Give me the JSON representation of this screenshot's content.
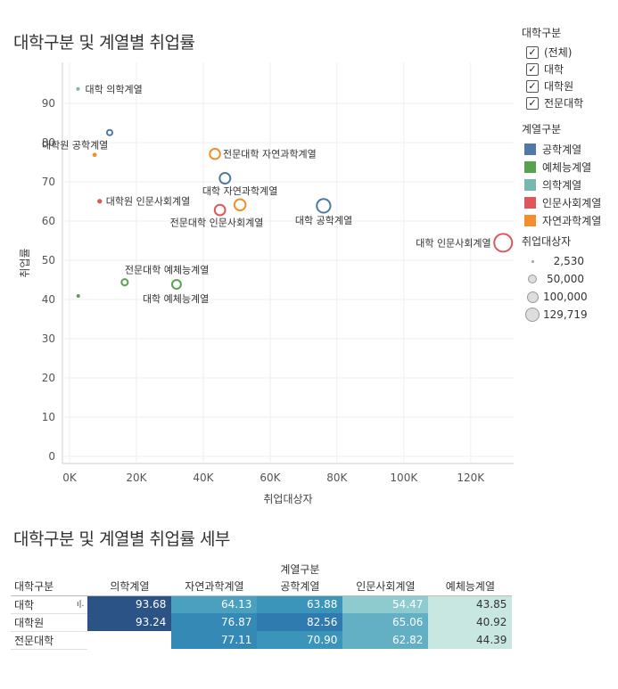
{
  "chart_title": "대학구분 및 계열별 취업률",
  "table_title": "대학구분 및 계열별 취업률 세부",
  "legend": {
    "type_title": "대학구분",
    "type_items": [
      "(전체)",
      "대학",
      "대학원",
      "전문대학"
    ],
    "field_title": "계열구분",
    "field_items": [
      {
        "name": "공학계열",
        "color": "#4e79a7"
      },
      {
        "name": "예체능계열",
        "color": "#59a14f"
      },
      {
        "name": "의학계열",
        "color": "#76b7b2"
      },
      {
        "name": "인문사회계열",
        "color": "#e15759"
      },
      {
        "name": "자연과학계열",
        "color": "#f28e2b"
      }
    ],
    "size_title": "취업대상자",
    "size_items": [
      "2,530",
      "50,000",
      "100,000",
      "129,719"
    ]
  },
  "chart_data": {
    "type": "scatter",
    "xlabel": "취업대상자",
    "ylabel": "취업률",
    "xlim": [
      0,
      135000
    ],
    "ylim": [
      0,
      100
    ],
    "x_ticks": [
      "0K",
      "20K",
      "40K",
      "60K",
      "80K",
      "100K",
      "120K"
    ],
    "y_ticks": [
      "0",
      "10",
      "20",
      "30",
      "40",
      "50",
      "60",
      "70",
      "80",
      "90"
    ],
    "grid": true,
    "points": [
      {
        "label": "대학 의학계열",
        "field": "의학계열",
        "x": 2530,
        "y": 93.68,
        "filled": true
      },
      {
        "label": "대학원 공학계열",
        "field": "공학계열",
        "x": 12000,
        "y": 82.56,
        "filled": false
      },
      {
        "label": "",
        "field": "자연과학계열",
        "x": 7500,
        "y": 76.87,
        "filled": true
      },
      {
        "label": "전문대학 자연과학계열",
        "field": "자연과학계열",
        "x": 43500,
        "y": 77.11,
        "filled": false
      },
      {
        "label": "대학 자연과학계열",
        "field": "자연과학계열",
        "x": 51000,
        "y": 64.13,
        "filled": false
      },
      {
        "label": "",
        "field": "공학계열",
        "x": 46500,
        "y": 70.9,
        "filled": false
      },
      {
        "label": "대학원 인문사회계열",
        "field": "인문사회계열",
        "x": 9000,
        "y": 65.06,
        "filled": true
      },
      {
        "label": "전문대학 인문사회계열",
        "field": "인문사회계열",
        "x": 45000,
        "y": 62.82,
        "filled": false
      },
      {
        "label": "대학 공학계열",
        "field": "공학계열",
        "x": 76000,
        "y": 63.88,
        "filled": false
      },
      {
        "label": "대학 인문사회계열",
        "field": "인문사회계열",
        "x": 129719,
        "y": 54.47,
        "filled": false
      },
      {
        "label": "전문대학 예체능계열",
        "field": "예체능계열",
        "x": 16500,
        "y": 44.39,
        "filled": false
      },
      {
        "label": "대학 예체능계열",
        "field": "예체능계열",
        "x": 32000,
        "y": 43.85,
        "filled": false
      },
      {
        "label": "",
        "field": "예체능계열",
        "x": 2600,
        "y": 40.92,
        "filled": true
      }
    ]
  },
  "table": {
    "group_header": "계열구분",
    "row_header": "대학구분",
    "columns": [
      "의학계열",
      "자연과학계열",
      "공학계열",
      "인문사회계열",
      "예체능계열"
    ],
    "rows": [
      {
        "name": "대학",
        "values": [
          "93.68",
          "64.13",
          "63.88",
          "54.47",
          "43.85"
        ]
      },
      {
        "name": "대학원",
        "values": [
          "93.24",
          "76.87",
          "82.56",
          "65.06",
          "40.92"
        ]
      },
      {
        "name": "전문대학",
        "values": [
          "",
          "77.11",
          "70.90",
          "62.82",
          "44.39"
        ]
      }
    ]
  }
}
